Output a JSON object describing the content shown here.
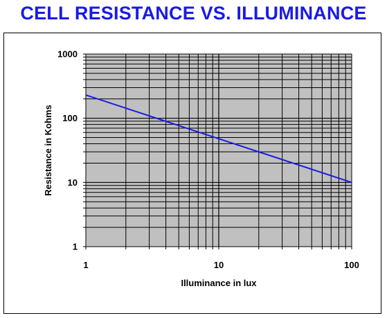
{
  "chart_data": {
    "type": "line",
    "title": "CELL RESISTANCE VS. ILLUMINANCE",
    "xlabel": "Illuminance in lux",
    "ylabel": "Resistance in Kohms",
    "xscale": "log",
    "yscale": "log",
    "xlim": [
      1,
      100
    ],
    "ylim": [
      1,
      1000
    ],
    "x_ticks": [
      1,
      10,
      100
    ],
    "x_tick_labels": [
      "1",
      "10",
      "100"
    ],
    "y_ticks": [
      1,
      10,
      100,
      1000
    ],
    "y_tick_labels": [
      "1",
      "10",
      "100",
      "1000"
    ],
    "grid": true,
    "legend": "none",
    "plot_background": "#c0c0c0",
    "series": [
      {
        "color": "#1a1ae6",
        "x": [
          1,
          100
        ],
        "y": [
          230,
          10
        ]
      }
    ]
  },
  "colors": {
    "title": "#1a1ae6",
    "line": "#1a1ae6",
    "plot_bg": "#c0c0c0"
  }
}
